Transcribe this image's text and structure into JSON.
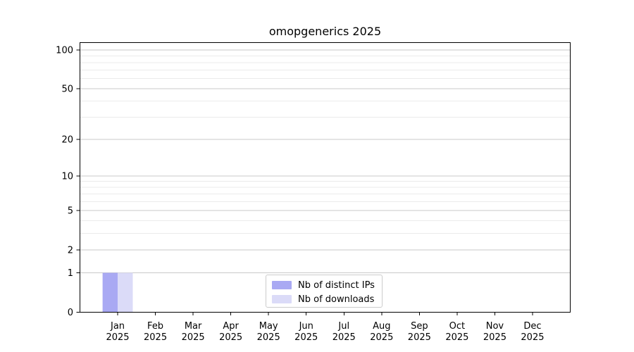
{
  "title": "omopgenerics 2025",
  "chart_data": {
    "type": "bar",
    "title": "omopgenerics 2025",
    "categories": [
      "Jan",
      "Feb",
      "Mar",
      "Apr",
      "May",
      "Jun",
      "Jul",
      "Aug",
      "Sep",
      "Oct",
      "Nov",
      "Dec"
    ],
    "category_year": "2025",
    "series": [
      {
        "name": "Nb of distinct IPs",
        "color": "#a9a9f3",
        "values": [
          1,
          0,
          0,
          0,
          0,
          0,
          0,
          0,
          0,
          0,
          0,
          0
        ]
      },
      {
        "name": "Nb of downloads",
        "color": "#dbdbf8",
        "values": [
          1,
          0,
          0,
          0,
          0,
          0,
          0,
          0,
          0,
          0,
          0,
          0
        ]
      }
    ],
    "xlabel": "",
    "ylabel": "",
    "yscale": "log1p",
    "ylim": [
      0,
      113
    ],
    "y_major_ticks": [
      0,
      1,
      2,
      5,
      10,
      20,
      50,
      100
    ],
    "y_minor_ticks": [
      3,
      4,
      6,
      7,
      8,
      9,
      30,
      40,
      60,
      70,
      80,
      90
    ],
    "grid": true,
    "legend_position": "lower center",
    "colors": {
      "bar_distinct_ips": "#a9a9f3",
      "bar_downloads": "#dbdbf8",
      "grid_major": "#c9c9c9",
      "grid_minor": "#ebebeb",
      "axis": "#000000",
      "text": "#000000",
      "legend_border": "#cccccc",
      "background": "#ffffff"
    }
  }
}
